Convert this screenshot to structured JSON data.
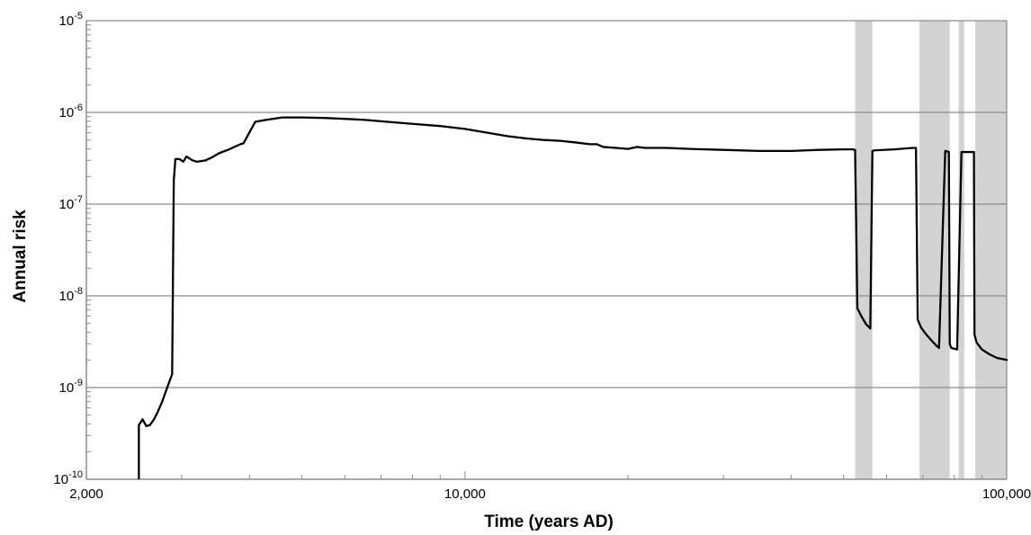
{
  "chart_data": {
    "type": "line",
    "xlabel": "Time (years AD)",
    "ylabel": "Annual risk",
    "x_scale": "log",
    "y_scale": "log",
    "xlim": [
      2000,
      100000
    ],
    "ylim": [
      1e-10,
      1e-05
    ],
    "grid": "horizontal",
    "legend": "none",
    "colors": {
      "line": "#000000",
      "grid": "#8c8c8c",
      "band": "#d3d3d3",
      "axis": "#8c8c8c"
    },
    "x_tick_labels": [
      {
        "value": 2000,
        "label": "2,000"
      },
      {
        "value": 10000,
        "label": "10,000"
      },
      {
        "value": 100000,
        "label": "100,000"
      }
    ],
    "y_tick_labels": [
      {
        "value": 1e-10,
        "base": "10",
        "exp": "-10"
      },
      {
        "value": 1e-09,
        "base": "10",
        "exp": "-9"
      },
      {
        "value": 1e-08,
        "base": "10",
        "exp": "-8"
      },
      {
        "value": 1e-07,
        "base": "10",
        "exp": "-7"
      },
      {
        "value": 1e-06,
        "base": "10",
        "exp": "-6"
      },
      {
        "value": 1e-05,
        "base": "10",
        "exp": "-5"
      }
    ],
    "shaded_intervals": [
      [
        52500,
        56500
      ],
      [
        69000,
        78500
      ],
      [
        81500,
        83500
      ],
      [
        87500,
        102000
      ]
    ],
    "series": [
      {
        "x": [
          2500,
          2500,
          2540,
          2580,
          2620,
          2660,
          2700,
          2760,
          2820,
          2880,
          2900,
          2920,
          2970,
          3020,
          3060,
          3100,
          3140,
          3200,
          3320,
          3400,
          3520,
          3650,
          3850,
          3900,
          4100,
          4300,
          4600,
          5000,
          5500,
          6000,
          6500,
          7000,
          8000,
          9000,
          10000,
          11000,
          12000,
          13000,
          14000,
          15000,
          16000,
          17000,
          17500,
          18000,
          19000,
          20000,
          20800,
          21500,
          22500,
          23500,
          26000,
          30000,
          35000,
          40000,
          45000,
          50000,
          52000,
          52500,
          53000,
          54000,
          55000,
          56000,
          56500,
          57000,
          62000,
          67000,
          68000,
          68500,
          69500,
          71000,
          72500,
          74000,
          75000,
          77000,
          78200,
          78500,
          79000,
          81000,
          82500,
          83000,
          83600,
          85500,
          87000,
          87200,
          87500,
          88000,
          90000,
          93000,
          96000,
          100000,
          102000
        ],
        "y": [
          1e-10,
          3.9e-10,
          4.5e-10,
          3.8e-10,
          3.9e-10,
          4.4e-10,
          5.2e-10,
          7e-10,
          1e-09,
          1.4e-09,
          1.8e-07,
          3.1e-07,
          3.1e-07,
          2.9e-07,
          3.3e-07,
          3.15e-07,
          3e-07,
          2.9e-07,
          3e-07,
          3.2e-07,
          3.6e-07,
          3.9e-07,
          4.5e-07,
          4.6e-07,
          7.9e-07,
          8.3e-07,
          8.8e-07,
          8.8e-07,
          8.7e-07,
          8.5e-07,
          8.3e-07,
          8e-07,
          7.5e-07,
          7.1e-07,
          6.6e-07,
          6e-07,
          5.5e-07,
          5.2e-07,
          5e-07,
          4.9e-07,
          4.7e-07,
          4.5e-07,
          4.5e-07,
          4.2e-07,
          4.1e-07,
          4e-07,
          4.2e-07,
          4.1e-07,
          4.1e-07,
          4.1e-07,
          4e-07,
          3.9e-07,
          3.8e-07,
          3.8e-07,
          3.9e-07,
          3.95e-07,
          3.95e-07,
          3.9e-07,
          7.3e-09,
          5.9e-09,
          4.9e-09,
          4.4e-09,
          3.8e-07,
          3.85e-07,
          3.95e-07,
          4.1e-07,
          4.1e-07,
          5.5e-09,
          4.5e-09,
          3.8e-09,
          3.3e-09,
          2.9e-09,
          2.7e-09,
          3.8e-07,
          3.7e-07,
          3e-09,
          2.7e-09,
          2.6e-09,
          3.7e-07,
          3.7e-07,
          3.7e-07,
          3.7e-07,
          3.7e-07,
          3.8e-09,
          3.5e-09,
          3.1e-09,
          2.6e-09,
          2.3e-09,
          2.1e-09,
          2e-09,
          1.95e-09
        ]
      }
    ]
  }
}
